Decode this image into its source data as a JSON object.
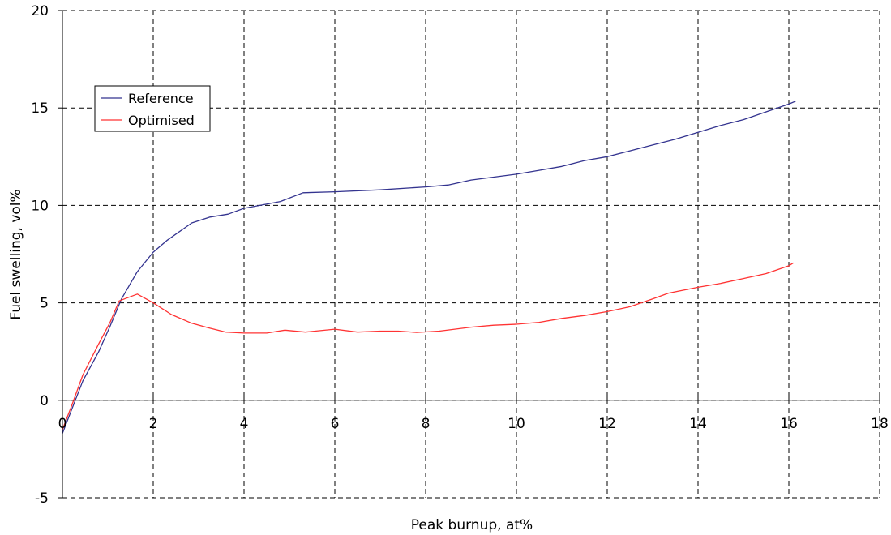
{
  "chart_data": {
    "type": "line",
    "title": "",
    "xlabel": "Peak burnup, at%",
    "ylabel": "Fuel swelling, vol%",
    "xlim": [
      0,
      18
    ],
    "ylim": [
      -5,
      20
    ],
    "x_ticks": [
      0,
      2,
      4,
      6,
      8,
      10,
      12,
      14,
      16,
      18
    ],
    "y_ticks": [
      -5,
      0,
      5,
      10,
      15,
      20
    ],
    "grid": true,
    "grid_style": "dashed",
    "legend_position": "upper-left",
    "series": [
      {
        "name": "Reference",
        "color": "#33338f",
        "x": [
          0,
          0.2,
          0.45,
          0.8,
          1.05,
          1.3,
          1.65,
          2.0,
          2.3,
          2.85,
          3.25,
          3.65,
          4.0,
          4.35,
          4.8,
          5.3,
          6.0,
          7.0,
          8.0,
          8.5,
          9.0,
          9.5,
          10.0,
          10.5,
          11.0,
          11.5,
          12.0,
          12.5,
          13.0,
          13.5,
          14.0,
          14.5,
          15.0,
          15.5,
          16.0,
          16.15
        ],
        "y": [
          -1.7,
          -0.5,
          1.0,
          2.5,
          3.8,
          5.2,
          6.6,
          7.6,
          8.2,
          9.1,
          9.4,
          9.55,
          9.85,
          10.0,
          10.2,
          10.65,
          10.7,
          10.8,
          10.95,
          11.05,
          11.3,
          11.45,
          11.6,
          11.8,
          12.0,
          12.3,
          12.5,
          12.8,
          13.1,
          13.4,
          13.75,
          14.1,
          14.4,
          14.8,
          15.2,
          15.35
        ]
      },
      {
        "name": "Optimised",
        "color": "#ff3333",
        "x": [
          0,
          0.2,
          0.45,
          0.8,
          1.05,
          1.25,
          1.65,
          2.0,
          2.4,
          2.85,
          3.25,
          3.6,
          4.0,
          4.5,
          4.9,
          5.35,
          6.0,
          6.5,
          7.0,
          7.4,
          7.8,
          8.3,
          9.0,
          9.5,
          10.0,
          10.5,
          11.0,
          11.5,
          12.0,
          12.5,
          13.0,
          13.35,
          14.0,
          14.5,
          15.0,
          15.5,
          16.0,
          16.1
        ],
        "y": [
          -1.5,
          -0.3,
          1.3,
          2.9,
          4.0,
          5.1,
          5.45,
          5.0,
          4.4,
          3.95,
          3.7,
          3.5,
          3.45,
          3.45,
          3.6,
          3.5,
          3.65,
          3.5,
          3.55,
          3.55,
          3.48,
          3.55,
          3.75,
          3.85,
          3.9,
          4.0,
          4.2,
          4.35,
          4.55,
          4.8,
          5.2,
          5.5,
          5.8,
          6.0,
          6.25,
          6.5,
          6.9,
          7.05
        ]
      }
    ]
  }
}
